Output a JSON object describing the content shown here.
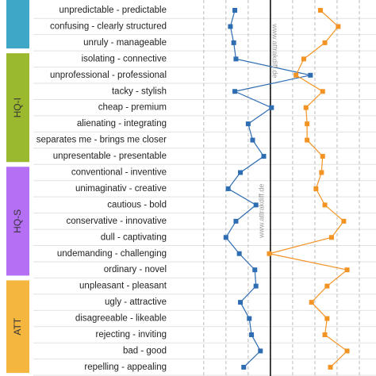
{
  "chart_data": {
    "type": "line",
    "orientation": "horizontal",
    "watermark": "www.attrakdiff.de",
    "groups": [
      {
        "label": null,
        "color": "#3ea7c8",
        "categories": [
          "unpredictable - predictable",
          "confusing - clearly structured",
          "unruly - manageable"
        ]
      },
      {
        "label": "HQ-I",
        "color": "#9bb92f",
        "categories": [
          "isolating - connective",
          "unprofessional - professional",
          "tacky - stylish",
          "cheap - premium",
          "alienating - integrating",
          "separates me - brings me closer",
          "unpresentable - presentable"
        ]
      },
      {
        "label": "HQ-S",
        "color": "#b46ff4",
        "categories": [
          "conventional - inventive",
          "unimaginativ - creative",
          "cautious - bold",
          "conservative - innovative",
          "dull - captivating",
          "undemanding - challenging",
          "ordinary - novel"
        ]
      },
      {
        "label": "ATT",
        "color": "#f5b640",
        "categories": [
          "unpleasant - pleasant",
          "ugly - attractive",
          "disagreeable - likeable",
          "rejecting - inviting",
          "bad - good",
          "repelling - appealing"
        ]
      }
    ],
    "series": [
      {
        "color": "#2f6db3",
        "values": [
          -1.6,
          -1.8,
          -1.65,
          -1.55,
          1.8,
          -1.6,
          0.05,
          -1.0,
          -0.8,
          -0.3,
          -1.35,
          -1.9,
          -0.65,
          -1.55,
          -2.0,
          -1.4,
          -0.7,
          -0.65,
          -1.35,
          -0.95,
          -0.85,
          -0.45,
          -1.2
        ]
      },
      {
        "color": "#f39323",
        "values": [
          2.25,
          3.05,
          2.45,
          1.5,
          1.15,
          2.35,
          1.6,
          1.65,
          1.65,
          2.35,
          2.3,
          2.05,
          2.45,
          3.3,
          2.75,
          -0.05,
          3.45,
          2.55,
          1.85,
          2.55,
          2.45,
          3.45,
          2.7
        ]
      }
    ],
    "xlim": [
      -3.6,
      4.75
    ],
    "xticks": [
      -3,
      -2,
      -1,
      0,
      1,
      2,
      3,
      4
    ],
    "grid": true
  }
}
